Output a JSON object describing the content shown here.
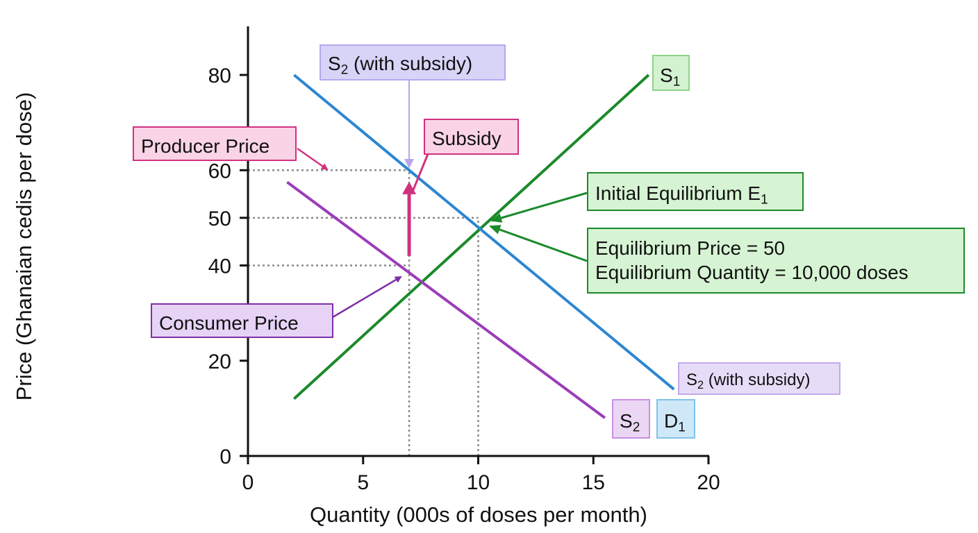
{
  "chart_data": {
    "type": "line",
    "xlabel": "Quantity (000s of doses per month)",
    "ylabel": "Price (Ghanaian cedis per dose)",
    "xlim": [
      0,
      20
    ],
    "ylim": [
      0,
      80
    ],
    "x_ticks": [
      "0",
      "5",
      "10",
      "15",
      "20"
    ],
    "y_ticks": [
      "0",
      "20",
      "40",
      "50",
      "60",
      "80"
    ],
    "grid": false,
    "series": [
      {
        "name": "S1",
        "color": "#1a8a2a",
        "x": [
          2,
          17.4
        ],
        "y": [
          12,
          80
        ]
      },
      {
        "name": "S2 (with subsidy)",
        "color": "#2b86d1",
        "x": [
          2,
          18.5
        ],
        "y": [
          80,
          14
        ]
      },
      {
        "name": "S2",
        "color": "#9b3db8",
        "x": [
          1.7,
          15.5
        ],
        "y": [
          57.5,
          8
        ]
      }
    ],
    "reference_lines": [
      {
        "kind": "horizontal",
        "y": 60,
        "from_x": 0,
        "to_x": 7
      },
      {
        "kind": "horizontal",
        "y": 50,
        "from_x": 0,
        "to_x": 10
      },
      {
        "kind": "horizontal",
        "y": 40,
        "from_x": 0,
        "to_x": 7
      },
      {
        "kind": "vertical",
        "x": 7,
        "from_y": 0,
        "to_y": 60
      },
      {
        "kind": "vertical",
        "x": 10,
        "from_y": 0,
        "to_y": 50
      }
    ],
    "subsidy_arrow": {
      "x": 7,
      "from_y": 42,
      "to_y": 57,
      "color": "#d0317f"
    },
    "annotations": {
      "s2_top": {
        "main": "S",
        "sub": "2",
        "rest": " (with subsidy)"
      },
      "s1": {
        "main": "S",
        "sub": "1"
      },
      "subsidy": "Subsidy",
      "producer_price": "Producer Price",
      "initial_equilibrium": {
        "main": "Initial Equilibrium E",
        "sub": "1"
      },
      "equilibrium_price": "Equilibrium Price = 50",
      "equilibrium_quantity": "Equilibrium Quantity = 10,000 doses",
      "consumer_price": "Consumer Price",
      "s2_right": {
        "main": "S",
        "sub": "2",
        "rest": " (with subsidy)"
      },
      "s2_small": {
        "main": "S",
        "sub": "2"
      },
      "d1": {
        "main": "D",
        "sub": "1"
      }
    }
  }
}
